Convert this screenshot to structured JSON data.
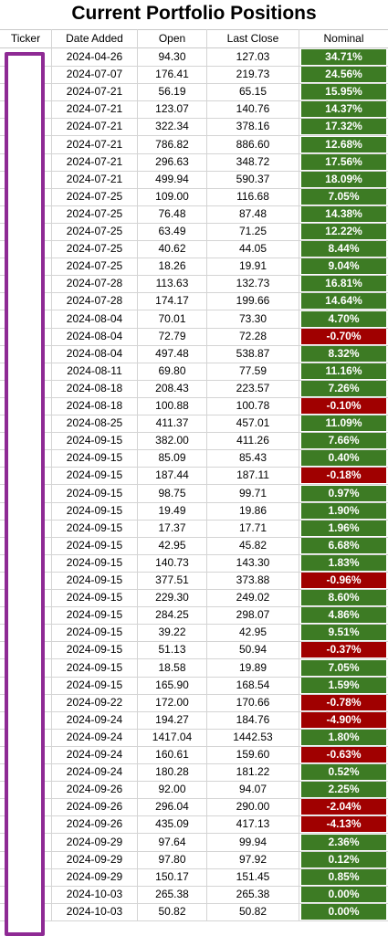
{
  "title": "Current Portfolio Positions",
  "headers": {
    "ticker": "Ticker",
    "date": "Date Added",
    "open": "Open",
    "last": "Last Close",
    "nominal": "Nominal"
  },
  "colors": {
    "positive": "#3d7b24",
    "negative": "#a00000",
    "ticker_box": "#8e2a94"
  },
  "rows": [
    {
      "date": "2024-04-26",
      "open": "94.30",
      "last": "127.03",
      "nominal": "34.71%",
      "sign": "pos"
    },
    {
      "date": "2024-07-07",
      "open": "176.41",
      "last": "219.73",
      "nominal": "24.56%",
      "sign": "pos"
    },
    {
      "date": "2024-07-21",
      "open": "56.19",
      "last": "65.15",
      "nominal": "15.95%",
      "sign": "pos"
    },
    {
      "date": "2024-07-21",
      "open": "123.07",
      "last": "140.76",
      "nominal": "14.37%",
      "sign": "pos"
    },
    {
      "date": "2024-07-21",
      "open": "322.34",
      "last": "378.16",
      "nominal": "17.32%",
      "sign": "pos"
    },
    {
      "date": "2024-07-21",
      "open": "786.82",
      "last": "886.60",
      "nominal": "12.68%",
      "sign": "pos"
    },
    {
      "date": "2024-07-21",
      "open": "296.63",
      "last": "348.72",
      "nominal": "17.56%",
      "sign": "pos"
    },
    {
      "date": "2024-07-21",
      "open": "499.94",
      "last": "590.37",
      "nominal": "18.09%",
      "sign": "pos"
    },
    {
      "date": "2024-07-25",
      "open": "109.00",
      "last": "116.68",
      "nominal": "7.05%",
      "sign": "pos"
    },
    {
      "date": "2024-07-25",
      "open": "76.48",
      "last": "87.48",
      "nominal": "14.38%",
      "sign": "pos"
    },
    {
      "date": "2024-07-25",
      "open": "63.49",
      "last": "71.25",
      "nominal": "12.22%",
      "sign": "pos"
    },
    {
      "date": "2024-07-25",
      "open": "40.62",
      "last": "44.05",
      "nominal": "8.44%",
      "sign": "pos"
    },
    {
      "date": "2024-07-25",
      "open": "18.26",
      "last": "19.91",
      "nominal": "9.04%",
      "sign": "pos"
    },
    {
      "date": "2024-07-28",
      "open": "113.63",
      "last": "132.73",
      "nominal": "16.81%",
      "sign": "pos"
    },
    {
      "date": "2024-07-28",
      "open": "174.17",
      "last": "199.66",
      "nominal": "14.64%",
      "sign": "pos"
    },
    {
      "date": "2024-08-04",
      "open": "70.01",
      "last": "73.30",
      "nominal": "4.70%",
      "sign": "pos"
    },
    {
      "date": "2024-08-04",
      "open": "72.79",
      "last": "72.28",
      "nominal": "-0.70%",
      "sign": "neg"
    },
    {
      "date": "2024-08-04",
      "open": "497.48",
      "last": "538.87",
      "nominal": "8.32%",
      "sign": "pos"
    },
    {
      "date": "2024-08-11",
      "open": "69.80",
      "last": "77.59",
      "nominal": "11.16%",
      "sign": "pos"
    },
    {
      "date": "2024-08-18",
      "open": "208.43",
      "last": "223.57",
      "nominal": "7.26%",
      "sign": "pos"
    },
    {
      "date": "2024-08-18",
      "open": "100.88",
      "last": "100.78",
      "nominal": "-0.10%",
      "sign": "neg"
    },
    {
      "date": "2024-08-25",
      "open": "411.37",
      "last": "457.01",
      "nominal": "11.09%",
      "sign": "pos"
    },
    {
      "date": "2024-09-15",
      "open": "382.00",
      "last": "411.26",
      "nominal": "7.66%",
      "sign": "pos"
    },
    {
      "date": "2024-09-15",
      "open": "85.09",
      "last": "85.43",
      "nominal": "0.40%",
      "sign": "pos"
    },
    {
      "date": "2024-09-15",
      "open": "187.44",
      "last": "187.11",
      "nominal": "-0.18%",
      "sign": "neg"
    },
    {
      "date": "2024-09-15",
      "open": "98.75",
      "last": "99.71",
      "nominal": "0.97%",
      "sign": "pos"
    },
    {
      "date": "2024-09-15",
      "open": "19.49",
      "last": "19.86",
      "nominal": "1.90%",
      "sign": "pos"
    },
    {
      "date": "2024-09-15",
      "open": "17.37",
      "last": "17.71",
      "nominal": "1.96%",
      "sign": "pos"
    },
    {
      "date": "2024-09-15",
      "open": "42.95",
      "last": "45.82",
      "nominal": "6.68%",
      "sign": "pos"
    },
    {
      "date": "2024-09-15",
      "open": "140.73",
      "last": "143.30",
      "nominal": "1.83%",
      "sign": "pos"
    },
    {
      "date": "2024-09-15",
      "open": "377.51",
      "last": "373.88",
      "nominal": "-0.96%",
      "sign": "neg"
    },
    {
      "date": "2024-09-15",
      "open": "229.30",
      "last": "249.02",
      "nominal": "8.60%",
      "sign": "pos"
    },
    {
      "date": "2024-09-15",
      "open": "284.25",
      "last": "298.07",
      "nominal": "4.86%",
      "sign": "pos"
    },
    {
      "date": "2024-09-15",
      "open": "39.22",
      "last": "42.95",
      "nominal": "9.51%",
      "sign": "pos"
    },
    {
      "date": "2024-09-15",
      "open": "51.13",
      "last": "50.94",
      "nominal": "-0.37%",
      "sign": "neg"
    },
    {
      "date": "2024-09-15",
      "open": "18.58",
      "last": "19.89",
      "nominal": "7.05%",
      "sign": "pos"
    },
    {
      "date": "2024-09-15",
      "open": "165.90",
      "last": "168.54",
      "nominal": "1.59%",
      "sign": "pos"
    },
    {
      "date": "2024-09-22",
      "open": "172.00",
      "last": "170.66",
      "nominal": "-0.78%",
      "sign": "neg"
    },
    {
      "date": "2024-09-24",
      "open": "194.27",
      "last": "184.76",
      "nominal": "-4.90%",
      "sign": "neg"
    },
    {
      "date": "2024-09-24",
      "open": "1417.04",
      "last": "1442.53",
      "nominal": "1.80%",
      "sign": "pos"
    },
    {
      "date": "2024-09-24",
      "open": "160.61",
      "last": "159.60",
      "nominal": "-0.63%",
      "sign": "neg"
    },
    {
      "date": "2024-09-24",
      "open": "180.28",
      "last": "181.22",
      "nominal": "0.52%",
      "sign": "pos"
    },
    {
      "date": "2024-09-26",
      "open": "92.00",
      "last": "94.07",
      "nominal": "2.25%",
      "sign": "pos"
    },
    {
      "date": "2024-09-26",
      "open": "296.04",
      "last": "290.00",
      "nominal": "-2.04%",
      "sign": "neg"
    },
    {
      "date": "2024-09-26",
      "open": "435.09",
      "last": "417.13",
      "nominal": "-4.13%",
      "sign": "neg"
    },
    {
      "date": "2024-09-29",
      "open": "97.64",
      "last": "99.94",
      "nominal": "2.36%",
      "sign": "pos"
    },
    {
      "date": "2024-09-29",
      "open": "97.80",
      "last": "97.92",
      "nominal": "0.12%",
      "sign": "pos"
    },
    {
      "date": "2024-09-29",
      "open": "150.17",
      "last": "151.45",
      "nominal": "0.85%",
      "sign": "pos"
    },
    {
      "date": "2024-10-03",
      "open": "265.38",
      "last": "265.38",
      "nominal": "0.00%",
      "sign": "pos"
    },
    {
      "date": "2024-10-03",
      "open": "50.82",
      "last": "50.82",
      "nominal": "0.00%",
      "sign": "pos"
    }
  ]
}
